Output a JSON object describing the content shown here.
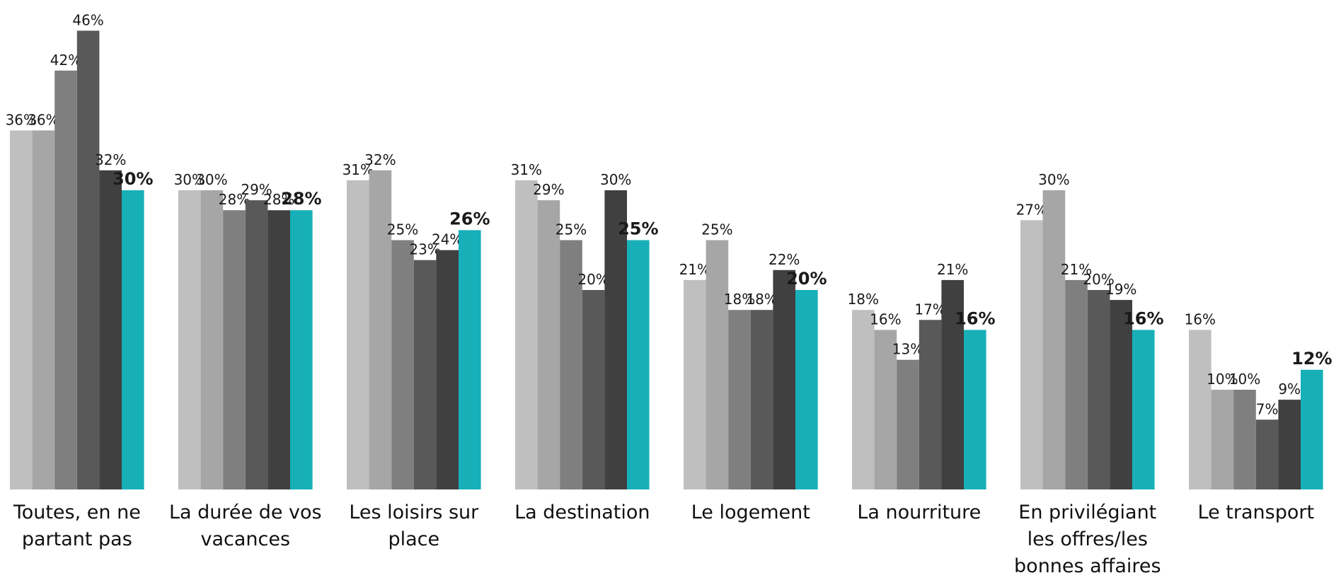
{
  "chart_data": {
    "type": "bar",
    "categories": [
      "Toutes, en ne partant pas",
      "La durée de vos vacances",
      "Les loisirs sur place",
      "La destination",
      "Le logement",
      "La nourriture",
      "En privilégiant les offres/les bonnes affaires",
      "Le transport"
    ],
    "series": [
      {
        "color": "#bfbfbf",
        "values": [
          36,
          30,
          31,
          31,
          21,
          18,
          27,
          16
        ],
        "value_labels": [
          "36%",
          "30%",
          "31%",
          "31%",
          "21%",
          "18%",
          "27%",
          "16%"
        ]
      },
      {
        "color": "#a6a6a6",
        "values": [
          36,
          30,
          32,
          29,
          25,
          16,
          30,
          10
        ],
        "value_labels": [
          "36%",
          "30%",
          "32%",
          "29%",
          "25%",
          "16%",
          "30%",
          "10%"
        ]
      },
      {
        "color": "#7f7f7f",
        "values": [
          42,
          28,
          25,
          25,
          18,
          13,
          21,
          10
        ],
        "value_labels": [
          "42%",
          "28%",
          "25%",
          "25%",
          "18%",
          "13%",
          "21%",
          "10%"
        ]
      },
      {
        "color": "#595959",
        "values": [
          46,
          29,
          23,
          20,
          18,
          17,
          20,
          7
        ],
        "value_labels": [
          "46%",
          "29%",
          "23%",
          "20%",
          "18%",
          "17%",
          "20%",
          "7%"
        ]
      },
      {
        "color": "#404040",
        "values": [
          32,
          28,
          24,
          30,
          22,
          21,
          19,
          9
        ],
        "value_labels": [
          "32%",
          "28%",
          "24%",
          "30%",
          "22%",
          "21%",
          "19%",
          "9%"
        ]
      },
      {
        "color": "#17b0b8",
        "bold": true,
        "values": [
          30,
          28,
          26,
          25,
          20,
          16,
          16,
          12
        ],
        "value_labels": [
          "30%",
          "28%",
          "26%",
          "25%",
          "20%",
          "16%",
          "16%",
          "12%"
        ]
      }
    ]
  }
}
